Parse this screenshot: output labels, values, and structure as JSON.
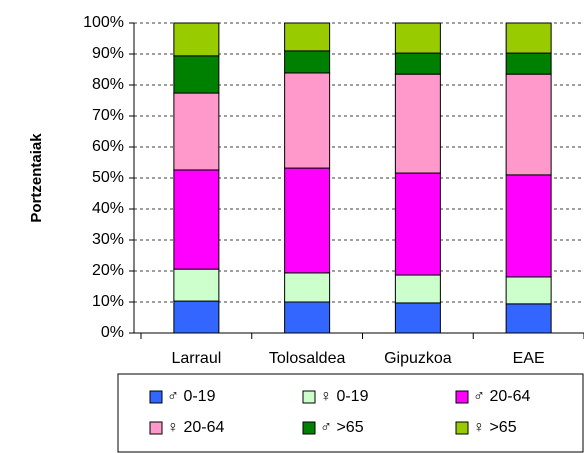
{
  "chart_data": {
    "type": "stacked_bar_100",
    "y_label": "Portzentaiak",
    "categories": [
      "Larraul",
      "Tolosaldea",
      "Gipuzkoa",
      "EAE"
    ],
    "series": [
      {
        "name": "♂ 0-19",
        "color": "#3366ff",
        "values": [
          10.3,
          10,
          9.7,
          9.4
        ]
      },
      {
        "name": "♀ 0-19",
        "color": "#ccffcc",
        "values": [
          10.3,
          9.4,
          9,
          8.7
        ]
      },
      {
        "name": "♂ 20-64",
        "color": "#ff00ff",
        "values": [
          32,
          33.8,
          32.9,
          32.9
        ]
      },
      {
        "name": "♀ 20-64",
        "color": "#ff99cc",
        "values": [
          24.8,
          30.7,
          31.9,
          32.5
        ]
      },
      {
        "name": "♂ >65",
        "color": "#008000",
        "values": [
          12,
          7.1,
          6.8,
          6.8
        ]
      },
      {
        "name": "♀ >65",
        "color": "#99cc00",
        "values": [
          10.6,
          9,
          9.7,
          9.7
        ]
      }
    ],
    "ylim": [
      0,
      100
    ],
    "yticks": [
      {
        "value": 0,
        "label": "0%"
      },
      {
        "value": 10,
        "label": "10%"
      },
      {
        "value": 20,
        "label": "20%"
      },
      {
        "value": 30,
        "label": "30%"
      },
      {
        "value": 40,
        "label": "40%"
      },
      {
        "value": 50,
        "label": "50%"
      },
      {
        "value": 60,
        "label": "60%"
      },
      {
        "value": 70,
        "label": "70%"
      },
      {
        "value": 80,
        "label": "80%"
      },
      {
        "value": 90,
        "label": "90%"
      },
      {
        "value": 100,
        "label": "100%"
      }
    ],
    "grid": true,
    "legend": "bottom"
  }
}
